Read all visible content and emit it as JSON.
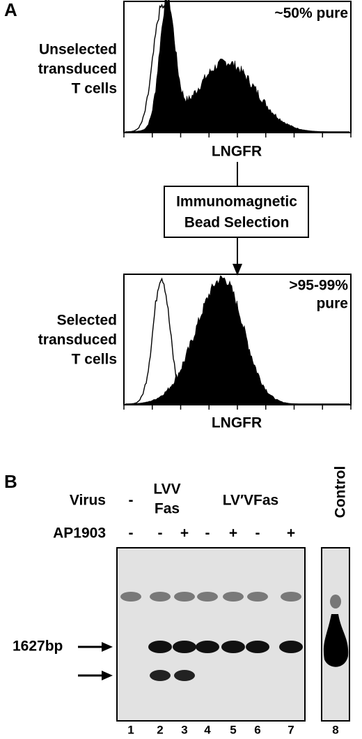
{
  "panel_a": {
    "label": "A",
    "top_histogram": {
      "annotation": "~50% pure",
      "y_label": [
        "Unselected",
        "transduced",
        "T cells"
      ],
      "x_label": "LNGFR"
    },
    "selection_box": [
      "Immunomagnetic",
      "Bead Selection"
    ],
    "bottom_histogram": {
      "annotation": [
        ">95-99%",
        "pure"
      ],
      "y_label": [
        "Selected",
        "transduced",
        "T cells"
      ],
      "x_label": "LNGFR"
    }
  },
  "panel_b": {
    "label": "B",
    "virus_label": "Virus",
    "virus": [
      "-",
      "LVV",
      "Fas",
      "LV′VFas"
    ],
    "treatment_label": "AP1903",
    "treatment": [
      "-",
      "-",
      "+",
      "-",
      "+",
      "-",
      "+"
    ],
    "control_label": "Control",
    "marker": "1627bp",
    "lanes": [
      "1",
      "2",
      "3",
      "4",
      "5",
      "6",
      "7",
      "8"
    ]
  }
}
